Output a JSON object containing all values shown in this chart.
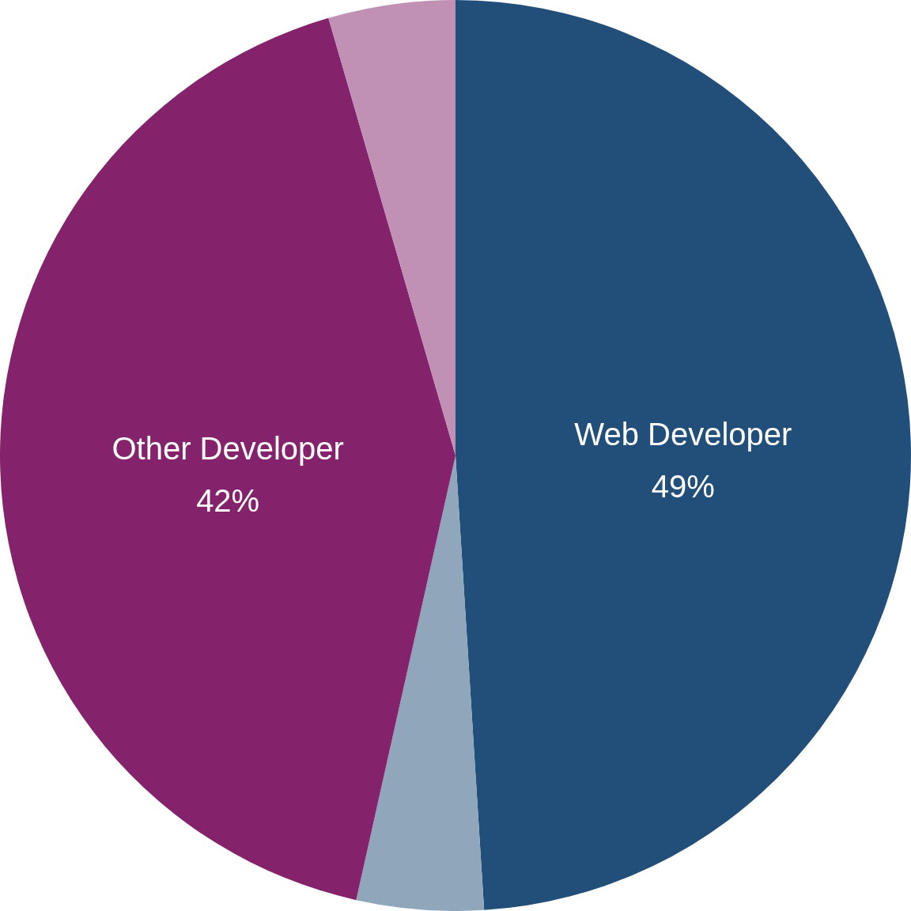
{
  "chart_data": {
    "type": "pie",
    "categories": [
      "Web Developer",
      null,
      "Other Developer",
      null
    ],
    "values": [
      49,
      4.5,
      42,
      4.5
    ],
    "colors": [
      "#214f7a",
      "#8fa6bb",
      "#84236c",
      "#c091b5"
    ],
    "value_labels": [
      "49%",
      null,
      "42%",
      null
    ]
  }
}
